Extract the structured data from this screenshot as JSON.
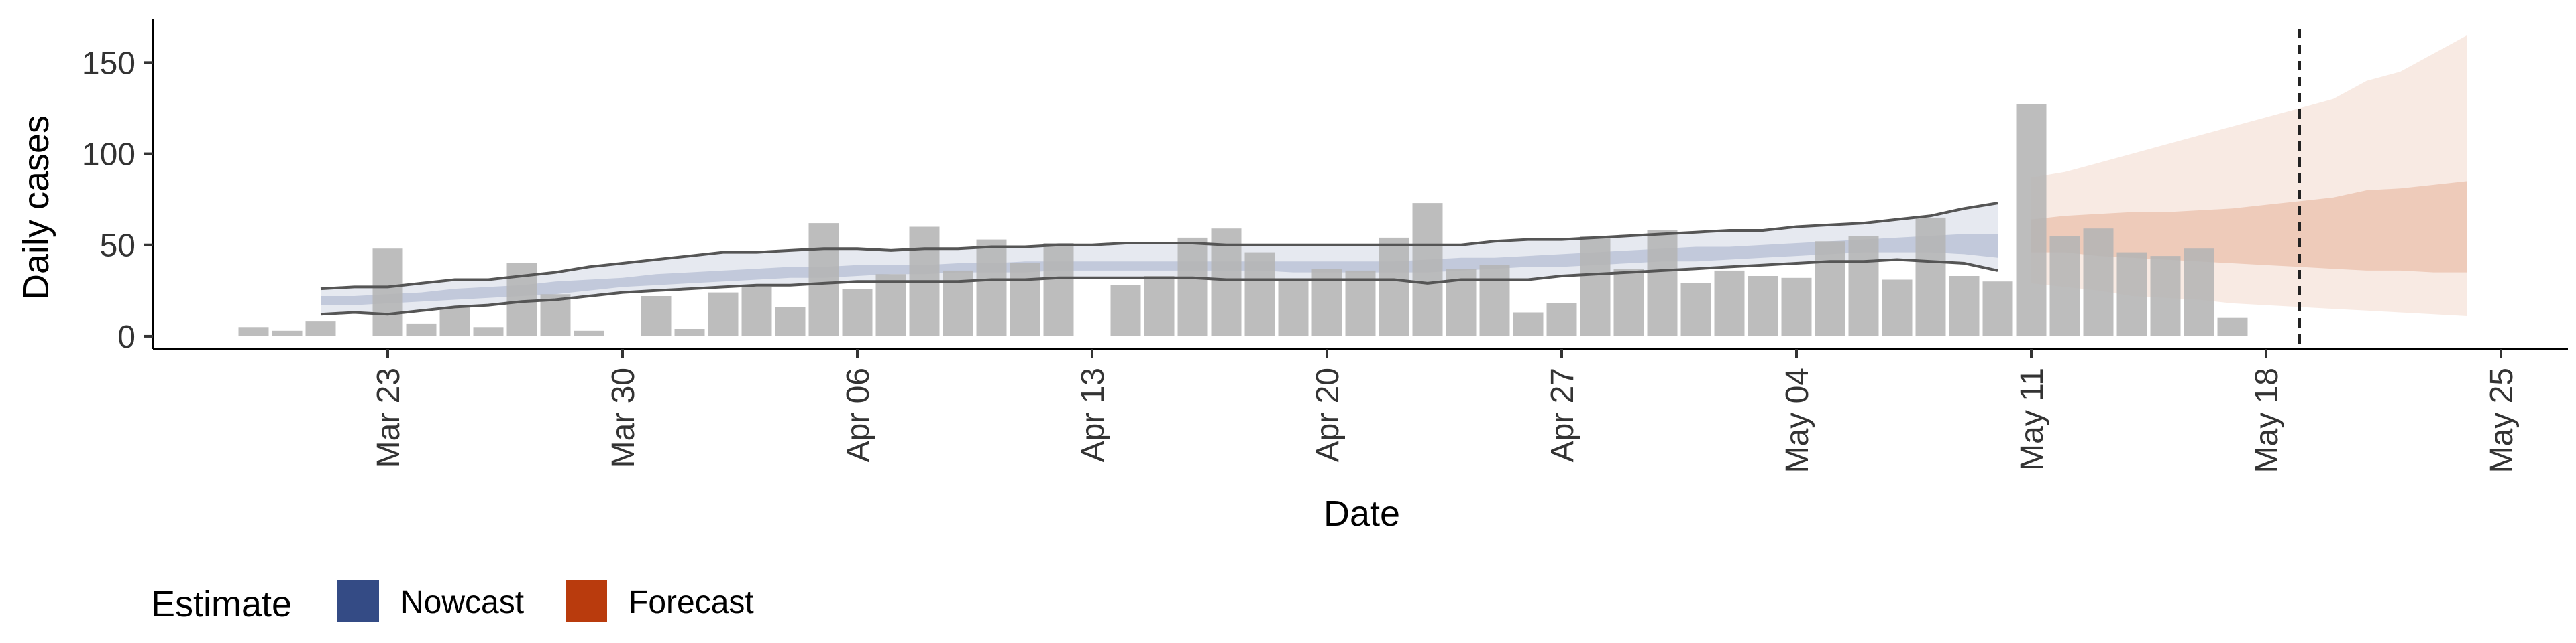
{
  "chart_data": {
    "type": "bar",
    "xlabel": "Date",
    "ylabel": "Daily cases",
    "x_ticks": [
      "Mar 23",
      "Mar 30",
      "Apr 06",
      "Apr 13",
      "Apr 20",
      "Apr 27",
      "May 04",
      "May 11",
      "May 18",
      "May 25"
    ],
    "y_ticks": [
      0,
      50,
      100,
      150
    ],
    "xlim": [
      "2020-03-16",
      "2020-05-27"
    ],
    "ylim": [
      -7,
      174
    ],
    "grid": false,
    "bars": {
      "start_date": "2020-03-19",
      "values": [
        5,
        3,
        8,
        0,
        48,
        7,
        16,
        5,
        40,
        23,
        3,
        0,
        22,
        4,
        24,
        27,
        16,
        62,
        26,
        34,
        60,
        36,
        53,
        40,
        51,
        0,
        28,
        33,
        54,
        59,
        46,
        31,
        37,
        36,
        54,
        73,
        37,
        39,
        13,
        18,
        55,
        37,
        58,
        29,
        36,
        33,
        32,
        52,
        55,
        31,
        65,
        33,
        30,
        127,
        55,
        59,
        46,
        44,
        48,
        10
      ]
    },
    "nowcast": {
      "name": "Nowcast",
      "start_date": "2020-03-21",
      "end_date": "2020-05-10",
      "outer_upper": [
        26,
        27,
        27,
        29,
        31,
        31,
        33,
        35,
        38,
        40,
        42,
        44,
        46,
        46,
        47,
        48,
        48,
        47,
        48,
        48,
        49,
        49,
        50,
        50,
        51,
        51,
        51,
        50,
        50,
        50,
        50,
        50,
        50,
        50,
        50,
        52,
        53,
        53,
        54,
        55,
        56,
        57,
        58,
        58,
        60,
        61,
        62,
        64,
        66,
        70,
        73
      ],
      "inner_upper": [
        22,
        22,
        23,
        24,
        26,
        27,
        28,
        30,
        31,
        32,
        34,
        35,
        36,
        37,
        38,
        38,
        39,
        39,
        39,
        40,
        40,
        41,
        41,
        41,
        41,
        41,
        41,
        41,
        41,
        41,
        41,
        41,
        41,
        42,
        43,
        43,
        44,
        45,
        46,
        47,
        48,
        49,
        49,
        50,
        51,
        52,
        53,
        54,
        55,
        56,
        56
      ],
      "median": [
        20,
        20,
        21,
        22,
        23,
        24,
        25,
        27,
        28,
        30,
        31,
        32,
        33,
        34,
        35,
        35,
        36,
        36,
        37,
        37,
        37,
        38,
        38,
        38,
        39,
        39,
        39,
        39,
        38,
        38,
        38,
        38,
        38,
        39,
        40,
        40,
        41,
        42,
        43,
        44,
        44,
        45,
        46,
        47,
        48,
        49,
        50,
        50,
        51,
        51,
        50
      ],
      "inner_lower": [
        17,
        17,
        18,
        19,
        20,
        21,
        22,
        23,
        25,
        27,
        28,
        29,
        30,
        31,
        32,
        32,
        33,
        34,
        34,
        35,
        35,
        35,
        36,
        36,
        36,
        36,
        36,
        36,
        36,
        35,
        35,
        35,
        35,
        35,
        36,
        37,
        38,
        38,
        39,
        40,
        41,
        41,
        42,
        43,
        44,
        45,
        46,
        46,
        46,
        45,
        43
      ],
      "outer_lower": [
        12,
        13,
        12,
        14,
        16,
        17,
        19,
        20,
        22,
        24,
        25,
        26,
        27,
        28,
        28,
        29,
        30,
        30,
        30,
        30,
        31,
        31,
        32,
        32,
        32,
        32,
        32,
        31,
        31,
        31,
        31,
        31,
        31,
        29,
        31,
        31,
        31,
        33,
        34,
        35,
        36,
        37,
        38,
        39,
        40,
        41,
        41,
        42,
        41,
        40,
        36
      ]
    },
    "forecast": {
      "name": "Forecast",
      "start_date": "2020-05-11",
      "end_date": "2020-05-24",
      "outer_upper": [
        87,
        90,
        95,
        100,
        105,
        110,
        115,
        120,
        125,
        130,
        140,
        145,
        155,
        165
      ],
      "inner_upper": [
        64,
        66,
        67,
        68,
        68,
        69,
        70,
        72,
        74,
        76,
        80,
        81,
        83,
        85
      ],
      "inner_lower": [
        46,
        46,
        44,
        43,
        42,
        41,
        40,
        39,
        38,
        37,
        36,
        36,
        35,
        35
      ],
      "outer_lower": [
        29,
        27,
        25,
        22,
        21,
        20,
        18,
        17,
        16,
        15,
        14,
        13,
        12,
        11
      ]
    },
    "vline_date": "2020-05-19",
    "legend": {
      "title": "Estimate",
      "position": "bottom-left",
      "items": [
        {
          "label": "Nowcast",
          "color": "#344b85"
        },
        {
          "label": "Forecast",
          "color": "#b93b0d"
        }
      ]
    },
    "colors": {
      "bar": "#b4b4b4",
      "nowcast_band": "#344b85",
      "forecast_band": "#c9511a",
      "nowcast_line": "#555555"
    }
  }
}
